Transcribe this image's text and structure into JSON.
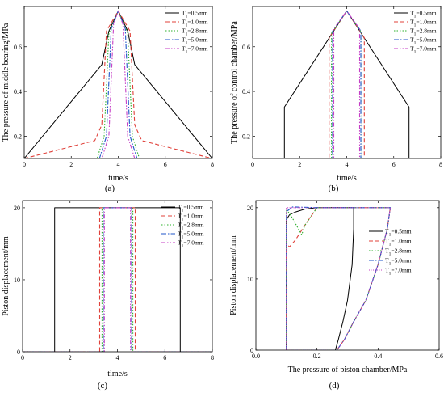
{
  "figure": {
    "legend_sub": "1",
    "captions": [
      "(a)",
      "(b)",
      "(c)",
      "(d)"
    ]
  },
  "chart_data": [
    {
      "type": "line",
      "panel": "a",
      "xlabel": "time/s",
      "ylabel": "The pressure of middle bearing/MPa",
      "xlim": [
        0,
        8
      ],
      "ylim": [
        0.1,
        0.78
      ],
      "xticks": [
        0,
        2,
        4,
        6,
        8
      ],
      "yticks": [
        0.2,
        0.4,
        0.6
      ],
      "grid": false,
      "legend": "top-right",
      "series": [
        {
          "name": "T=0.5mm",
          "color": "#000000",
          "dash": "",
          "x": [
            0,
            3.3,
            3.6,
            4.0,
            4.4,
            4.7,
            8
          ],
          "y": [
            0.1,
            0.52,
            0.67,
            0.76,
            0.67,
            0.52,
            0.1
          ]
        },
        {
          "name": "T=1.0mm",
          "color": "#e0413a",
          "dash": "5,3",
          "x": [
            0,
            3.0,
            3.3,
            3.5,
            4.0,
            4.5,
            4.7,
            5.0,
            8
          ],
          "y": [
            0.1,
            0.18,
            0.25,
            0.67,
            0.76,
            0.67,
            0.25,
            0.18,
            0.1
          ]
        },
        {
          "name": "T=2.8mm",
          "color": "#2bb02b",
          "dash": "1.5,2",
          "x": [
            0,
            3.1,
            3.4,
            3.6,
            4.0,
            4.4,
            4.6,
            4.9,
            8
          ],
          "y": [
            0.1,
            0.1,
            0.2,
            0.66,
            0.76,
            0.66,
            0.2,
            0.1,
            0.1
          ]
        },
        {
          "name": "T=5.0mm",
          "color": "#1f56c8",
          "dash": "6,2,1.5,2",
          "x": [
            0,
            3.2,
            3.5,
            3.7,
            4.0,
            4.3,
            4.5,
            4.8,
            8
          ],
          "y": [
            0.1,
            0.1,
            0.2,
            0.68,
            0.76,
            0.68,
            0.2,
            0.1,
            0.1
          ]
        },
        {
          "name": "T=7.0mm",
          "color": "#c63fc6",
          "dash": "5,2,1.5,2,1.5,2",
          "x": [
            0,
            3.3,
            3.6,
            3.8,
            4.0,
            4.2,
            4.4,
            4.7,
            8
          ],
          "y": [
            0.1,
            0.1,
            0.2,
            0.7,
            0.76,
            0.7,
            0.2,
            0.1,
            0.1
          ]
        }
      ]
    },
    {
      "type": "line",
      "panel": "b",
      "xlabel": "time/s",
      "ylabel": "The pressure of control chamber/MPa",
      "xlim": [
        0,
        8
      ],
      "ylim": [
        0.1,
        0.78
      ],
      "xticks": [
        0,
        2,
        4,
        6,
        8
      ],
      "yticks": [
        0.2,
        0.4,
        0.6
      ],
      "grid": false,
      "legend": "top-right",
      "series": [
        {
          "name": "T=0.5mm",
          "color": "#000000",
          "dash": "",
          "x": [
            0,
            1.35,
            1.35,
            4.0,
            6.65,
            6.65,
            8
          ],
          "y": [
            0.1,
            0.1,
            0.33,
            0.76,
            0.33,
            0.1,
            0.1
          ]
        },
        {
          "name": "T=1.0mm",
          "color": "#e0413a",
          "dash": "5,3",
          "x": [
            0,
            3.25,
            3.25,
            4.0,
            4.75,
            4.75,
            8
          ],
          "y": [
            0.1,
            0.1,
            0.64,
            0.76,
            0.64,
            0.1,
            0.1
          ]
        },
        {
          "name": "T=2.8mm",
          "color": "#2bb02b",
          "dash": "1.5,2",
          "x": [
            0,
            3.35,
            3.35,
            4.0,
            4.65,
            4.65,
            8
          ],
          "y": [
            0.1,
            0.1,
            0.66,
            0.76,
            0.66,
            0.1,
            0.1
          ]
        },
        {
          "name": "T=5.0mm",
          "color": "#1f56c8",
          "dash": "6,2,1.5,2",
          "x": [
            0,
            3.4,
            3.4,
            4.0,
            4.6,
            4.6,
            8
          ],
          "y": [
            0.1,
            0.1,
            0.67,
            0.76,
            0.67,
            0.1,
            0.1
          ]
        },
        {
          "name": "T=7.0mm",
          "color": "#c63fc6",
          "dash": "5,2,1.5,2,1.5,2",
          "x": [
            0,
            3.45,
            3.45,
            4.0,
            4.55,
            4.55,
            8
          ],
          "y": [
            0.1,
            0.1,
            0.68,
            0.76,
            0.68,
            0.1,
            0.1
          ]
        }
      ]
    },
    {
      "type": "line",
      "panel": "c",
      "xlabel": "time/s",
      "ylabel": "Piston displacement/mm",
      "xlim": [
        0,
        8
      ],
      "ylim": [
        0,
        21
      ],
      "xticks": [
        0,
        2,
        4,
        6,
        8
      ],
      "yticks": [
        0,
        10,
        20
      ],
      "grid": false,
      "legend": "top-right",
      "series": [
        {
          "name": "T=0.5mm",
          "color": "#000000",
          "dash": "",
          "x": [
            0,
            1.35,
            1.35,
            6.65,
            6.65,
            8
          ],
          "y": [
            0,
            0,
            20,
            20,
            0,
            0
          ]
        },
        {
          "name": "T=1.0mm",
          "color": "#e0413a",
          "dash": "5,3",
          "x": [
            0,
            3.25,
            3.25,
            4.75,
            4.75,
            8
          ],
          "y": [
            0,
            0,
            20,
            20,
            0,
            0
          ]
        },
        {
          "name": "T=2.8mm",
          "color": "#2bb02b",
          "dash": "1.5,2",
          "x": [
            0,
            3.35,
            3.35,
            4.65,
            4.65,
            8
          ],
          "y": [
            0,
            0,
            20,
            20,
            0,
            0
          ]
        },
        {
          "name": "T=5.0mm",
          "color": "#1f56c8",
          "dash": "6,2,1.5,2",
          "x": [
            0,
            3.4,
            3.4,
            4.6,
            4.6,
            8
          ],
          "y": [
            0,
            0,
            20,
            20,
            0,
            0
          ]
        },
        {
          "name": "T=7.0mm",
          "color": "#c63fc6",
          "dash": "5,2,1.5,2,1.5,2",
          "x": [
            0,
            3.45,
            3.45,
            4.55,
            4.55,
            8
          ],
          "y": [
            0,
            0,
            20,
            20,
            0,
            0
          ]
        }
      ]
    },
    {
      "type": "line",
      "panel": "d",
      "xlabel": "The pressure of piston chamber/MPa",
      "ylabel": "Piston displacement/mm",
      "xlim": [
        0,
        0.6
      ],
      "ylim": [
        0,
        21
      ],
      "xticks": [
        0.0,
        0.2,
        0.4,
        0.6
      ],
      "xtick_labels": [
        "0.0",
        "0.2",
        "0.4",
        "0.6"
      ],
      "yticks": [
        0,
        10,
        20
      ],
      "grid": false,
      "legend": "right",
      "series": [
        {
          "name": "T=0.5mm",
          "color": "#000000",
          "dash": "",
          "x": [
            0.1,
            0.1,
            0.11,
            0.13,
            0.16,
            0.2,
            0.3,
            0.32,
            0.32,
            0.315,
            0.3,
            0.285,
            0.27,
            0.26,
            0.1
          ],
          "y": [
            0,
            18.3,
            19.0,
            19.4,
            19.8,
            20,
            20,
            20,
            17,
            12,
            7,
            4,
            1.5,
            0,
            0
          ]
        },
        {
          "name": "T=1.0mm",
          "color": "#e0413a",
          "dash": "5,3",
          "x": [
            0.1,
            0.1,
            0.11,
            0.13,
            0.16,
            0.2,
            0.42,
            0.44,
            0.43,
            0.4,
            0.36,
            0.32,
            0.29,
            0.265,
            0.1
          ],
          "y": [
            0,
            15,
            14.5,
            15.5,
            17.5,
            20,
            20,
            20,
            17,
            12,
            7,
            4,
            1.5,
            0,
            0
          ]
        },
        {
          "name": "T=2.8mm",
          "color": "#2bb02b",
          "dash": "1.5,2",
          "x": [
            0.1,
            0.1,
            0.12,
            0.15,
            0.16,
            0.2,
            0.42,
            0.44,
            0.43,
            0.4,
            0.36,
            0.32,
            0.29,
            0.265,
            0.1
          ],
          "y": [
            0,
            19.8,
            18.5,
            16.2,
            17.5,
            20,
            20,
            20,
            17,
            12,
            7,
            4,
            1.5,
            0,
            0
          ]
        },
        {
          "name": "T=5.0mm",
          "color": "#1f56c8",
          "dash": "6,2,1.5,2",
          "x": [
            0.1,
            0.1,
            0.105,
            0.12,
            0.2,
            0.42,
            0.44,
            0.43,
            0.4,
            0.36,
            0.32,
            0.29,
            0.265,
            0.1
          ],
          "y": [
            0,
            19.5,
            19.6,
            20.1,
            20,
            20,
            20,
            17,
            12,
            7,
            4,
            1.5,
            0,
            0
          ]
        },
        {
          "name": "T=7.0mm",
          "color": "#c63fc6",
          "dash": "1,1.5",
          "x": [
            0.1,
            0.1,
            0.11,
            0.2,
            0.42,
            0.44,
            0.43,
            0.4,
            0.36,
            0.32,
            0.29,
            0.265,
            0.1
          ],
          "y": [
            0,
            20,
            20,
            20,
            20,
            20,
            17,
            12,
            7,
            4,
            1.5,
            0,
            0
          ]
        }
      ]
    }
  ]
}
